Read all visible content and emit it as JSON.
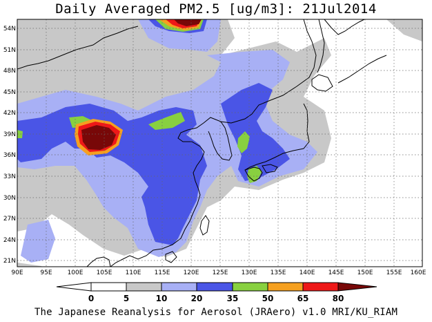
{
  "title": "Daily Averaged PM2.5 [ug/m3]: 21Jul2014",
  "footer": "The Japanese Reanalysis for Aerosol (JRAero) v1.0 MRI/KU_RIAM",
  "map": {
    "lon_range": [
      90,
      160
    ],
    "lat_range": [
      20,
      55
    ],
    "lon_ticks": [
      "90E",
      "95E",
      "100E",
      "105E",
      "110E",
      "115E",
      "120E",
      "125E",
      "130E",
      "135E",
      "140E",
      "145E",
      "150E",
      "155E",
      "160E"
    ],
    "lat_ticks": [
      "54N",
      "51N",
      "48N",
      "45N",
      "42N",
      "39N",
      "36N",
      "33N",
      "30N",
      "27N",
      "24N",
      "21N"
    ],
    "grid": "dotted"
  },
  "colorbar": {
    "levels": [
      "0",
      "5",
      "10",
      "20",
      "35",
      "50",
      "65",
      "80"
    ],
    "colors": [
      "#ffffff",
      "#c8c8c8",
      "#a8b0f5",
      "#4a55e6",
      "#88d040",
      "#f5a020",
      "#ee1818",
      "#780808"
    ]
  }
}
